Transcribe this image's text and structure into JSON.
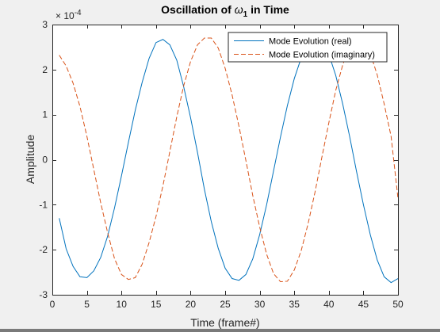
{
  "window": {
    "background": "#f0f0f0"
  },
  "chart_data": {
    "type": "line",
    "title": "Oscillation of ",
    "title_symbol": "ω",
    "title_subscript": "1",
    "title_suffix": " in Time",
    "xlabel": "Time (frame#)",
    "ylabel": "Amplitude",
    "xlim": [
      0,
      50
    ],
    "ylim": [
      -3,
      3
    ],
    "y_exponent_base": "× 10",
    "y_exponent_power": "-4",
    "xticks": [
      0,
      5,
      10,
      15,
      20,
      25,
      30,
      35,
      40,
      45,
      50
    ],
    "xtick_labels": [
      "0",
      "5",
      "10",
      "15",
      "20",
      "25",
      "30",
      "35",
      "40",
      "45",
      "50"
    ],
    "yticks": [
      -3,
      -2,
      -1,
      0,
      1,
      2,
      3
    ],
    "ytick_labels": [
      "-3",
      "-2",
      "-1",
      "0",
      "1",
      "2",
      "3"
    ],
    "grid": false,
    "legend_position": "top-right",
    "axes_color": "#262626",
    "x": [
      1,
      2,
      3,
      4,
      5,
      6,
      7,
      8,
      9,
      10,
      11,
      12,
      13,
      14,
      15,
      16,
      17,
      18,
      19,
      20,
      21,
      22,
      23,
      24,
      25,
      26,
      27,
      28,
      29,
      30,
      31,
      32,
      33,
      34,
      35,
      36,
      37,
      38,
      39,
      40,
      41,
      42,
      43,
      44,
      45,
      46,
      47,
      48,
      49,
      50
    ],
    "series": [
      {
        "name": "Mode Evolution (real)",
        "color": "#0072bd",
        "style": "solid",
        "values": [
          -1.3,
          -1.98,
          -2.37,
          -2.6,
          -2.62,
          -2.47,
          -2.17,
          -1.7,
          -1.07,
          -0.36,
          0.38,
          1.1,
          1.72,
          2.25,
          2.6,
          2.67,
          2.55,
          2.21,
          1.62,
          0.93,
          0.16,
          -0.66,
          -1.38,
          -1.97,
          -2.41,
          -2.64,
          -2.68,
          -2.55,
          -2.2,
          -1.66,
          -1.0,
          -0.25,
          0.5,
          1.2,
          1.8,
          2.26,
          2.55,
          2.67,
          2.6,
          2.34,
          1.87,
          1.24,
          0.52,
          -0.26,
          -1.0,
          -1.67,
          -2.23,
          -2.6,
          -2.73,
          -2.64
        ]
      },
      {
        "name": "Mode Evolution (imaginary)",
        "color": "#d95319",
        "style": "dashed",
        "values": [
          2.32,
          2.08,
          1.7,
          1.18,
          0.52,
          -0.22,
          -0.96,
          -1.62,
          -2.2,
          -2.55,
          -2.66,
          -2.62,
          -2.32,
          -1.84,
          -1.26,
          -0.58,
          0.18,
          0.95,
          1.64,
          2.18,
          2.55,
          2.7,
          2.7,
          2.48,
          2.03,
          1.44,
          0.74,
          -0.02,
          -0.8,
          -1.5,
          -2.1,
          -2.53,
          -2.71,
          -2.7,
          -2.45,
          -2.02,
          -1.42,
          -0.72,
          0.06,
          0.82,
          1.54,
          2.1,
          2.52,
          2.7,
          2.64,
          2.36,
          1.88,
          1.24,
          0.52,
          -0.86
        ]
      }
    ]
  }
}
